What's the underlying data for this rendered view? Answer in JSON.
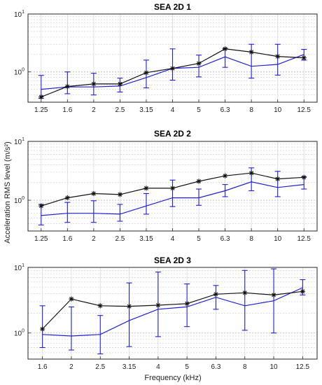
{
  "figure": {
    "ylabel": "Acceleration RMS level (m/s²)",
    "xlabel": "Frequency (kHz)"
  },
  "colors": {
    "black_series": "#111111",
    "blue_series": "#1f1fd6",
    "axis": "#262626",
    "grid": "#d9d9d9"
  },
  "chart_data": [
    {
      "type": "line",
      "title": "SEA 2D 1",
      "yscale": "log",
      "ylim": [
        0.3,
        10
      ],
      "yticks": [
        {
          "value": 1,
          "base": "10",
          "exp": "0"
        },
        {
          "value": 10,
          "base": "10",
          "exp": "1"
        }
      ],
      "grid": true,
      "categories": [
        "1.25",
        "1.6",
        "2",
        "2.5",
        "3.15",
        "4",
        "5",
        "6.3",
        "8",
        "10",
        "12.5"
      ],
      "series": [
        {
          "color": "#111111",
          "marker": "asterisk",
          "values": [
            0.37,
            0.56,
            0.62,
            0.62,
            0.97,
            1.15,
            1.4,
            2.5,
            2.2,
            1.85,
            1.75
          ]
        },
        {
          "color": "#1f1fd6",
          "marker": "none",
          "values": [
            0.5,
            0.55,
            0.55,
            0.57,
            0.8,
            1.15,
            1.2,
            1.82,
            1.25,
            1.35,
            2.0
          ],
          "err_low": [
            0.35,
            0.42,
            0.4,
            0.45,
            0.53,
            0.72,
            0.82,
            1.2,
            0.78,
            0.88,
            1.6
          ],
          "err_high": [
            0.87,
            1.0,
            0.95,
            0.78,
            1.6,
            2.5,
            1.95,
            2.55,
            3.0,
            3.0,
            2.45
          ]
        }
      ]
    },
    {
      "type": "line",
      "title": "SEA 2D 2",
      "yscale": "log",
      "ylim": [
        0.3,
        10
      ],
      "yticks": [
        {
          "value": 1,
          "base": "10",
          "exp": "0"
        },
        {
          "value": 10,
          "base": "10",
          "exp": "1"
        }
      ],
      "grid": true,
      "categories": [
        "1.25",
        "1.6",
        "2",
        "2.5",
        "3.15",
        "4",
        "5",
        "6.3",
        "8",
        "10",
        "12.5"
      ],
      "series": [
        {
          "color": "#111111",
          "marker": "asterisk",
          "values": [
            0.8,
            1.1,
            1.3,
            1.25,
            1.6,
            1.6,
            2.1,
            2.6,
            2.9,
            2.3,
            2.45
          ]
        },
        {
          "color": "#1f1fd6",
          "marker": "none",
          "values": [
            0.55,
            0.6,
            0.6,
            0.58,
            0.8,
            1.1,
            1.1,
            1.45,
            2.05,
            1.65,
            1.85
          ],
          "err_low": [
            0.38,
            0.42,
            0.42,
            0.44,
            0.58,
            0.78,
            0.82,
            1.15,
            1.45,
            1.15,
            1.55
          ],
          "err_high": [
            0.85,
            0.92,
            0.98,
            0.85,
            1.3,
            2.2,
            1.55,
            1.85,
            3.55,
            3.1,
            2.5
          ]
        }
      ]
    },
    {
      "type": "line",
      "title": "SEA 2D 3",
      "yscale": "log",
      "ylim": [
        0.4,
        10
      ],
      "yticks": [
        {
          "value": 1,
          "base": "10",
          "exp": "0"
        },
        {
          "value": 10,
          "base": "10",
          "exp": "1"
        }
      ],
      "grid": true,
      "categories": [
        "1.6",
        "2",
        "2.5",
        "3.15",
        "4",
        "5",
        "6.3",
        "8",
        "10",
        "12.5"
      ],
      "series": [
        {
          "color": "#111111",
          "marker": "asterisk",
          "values": [
            1.15,
            3.3,
            2.6,
            2.55,
            2.65,
            2.8,
            3.9,
            4.1,
            3.8,
            4.3
          ]
        },
        {
          "color": "#1f1fd6",
          "marker": "none",
          "values": [
            0.95,
            0.9,
            0.95,
            1.55,
            2.3,
            2.5,
            3.5,
            2.6,
            3.1,
            4.9
          ],
          "err_low": [
            0.6,
            0.55,
            0.48,
            0.62,
            0.88,
            1.25,
            2.3,
            1.1,
            1.0,
            3.8
          ],
          "err_high": [
            2.6,
            2.5,
            1.85,
            5.8,
            8.5,
            5.6,
            5.3,
            9.0,
            9.5,
            6.5
          ]
        }
      ]
    }
  ]
}
